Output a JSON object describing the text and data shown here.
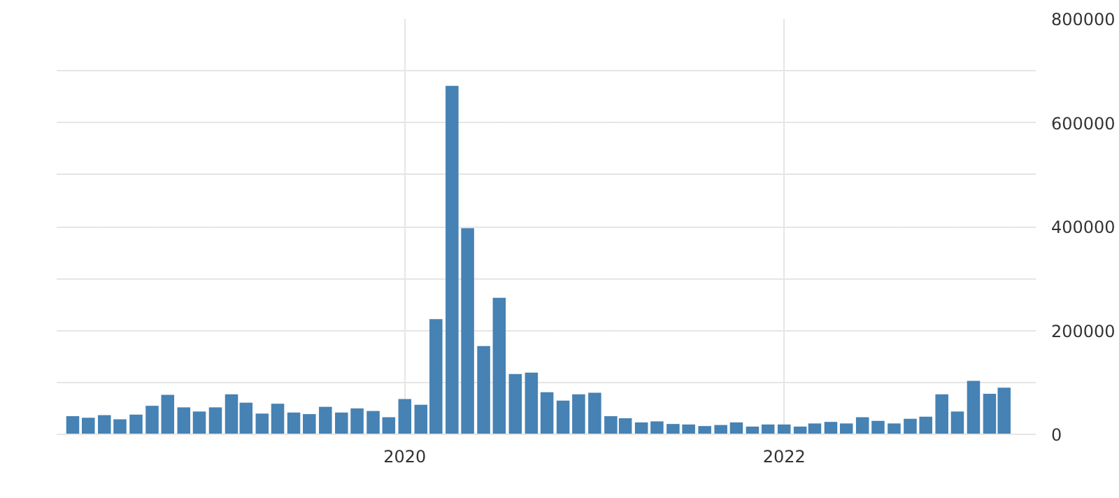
{
  "chart_data": {
    "type": "bar",
    "x": [
      "2018-04",
      "2018-05",
      "2018-06",
      "2018-07",
      "2018-08",
      "2018-09",
      "2018-10",
      "2018-11",
      "2018-12",
      "2019-01",
      "2019-02",
      "2019-03",
      "2019-04",
      "2019-05",
      "2019-06",
      "2019-07",
      "2019-08",
      "2019-09",
      "2019-10",
      "2019-11",
      "2019-12",
      "2020-01",
      "2020-02",
      "2020-03",
      "2020-04",
      "2020-05",
      "2020-06",
      "2020-07",
      "2020-08",
      "2020-09",
      "2020-10",
      "2020-11",
      "2020-12",
      "2021-01",
      "2021-02",
      "2021-03",
      "2021-04",
      "2021-05",
      "2021-06",
      "2021-07",
      "2021-08",
      "2021-09",
      "2021-10",
      "2021-11",
      "2021-12",
      "2022-01",
      "2022-02",
      "2022-03",
      "2022-04",
      "2022-05",
      "2022-06",
      "2022-07",
      "2022-08",
      "2022-09",
      "2022-10",
      "2022-11",
      "2022-12",
      "2023-01",
      "2023-02",
      "2023-03"
    ],
    "values": [
      35000,
      32000,
      37000,
      29000,
      38000,
      55000,
      76000,
      52000,
      44000,
      52000,
      77000,
      61000,
      40000,
      59000,
      42000,
      39000,
      53000,
      42000,
      50000,
      45000,
      33000,
      68000,
      57000,
      222000,
      671000,
      397000,
      170000,
      263000,
      116000,
      119000,
      81000,
      65000,
      77000,
      80000,
      35000,
      31000,
      23000,
      25000,
      20000,
      19000,
      16000,
      18000,
      23000,
      15000,
      19000,
      19000,
      15000,
      21000,
      24000,
      21000,
      33000,
      26000,
      21000,
      30000,
      34000,
      77000,
      44000,
      103000,
      78000,
      90000
    ],
    "color": "#4682b4",
    "xlim": [
      "2018-03",
      "2023-05"
    ],
    "xticks": [
      {
        "value": "2020-01",
        "label": "2020"
      },
      {
        "value": "2022-01",
        "label": "2022"
      }
    ],
    "ylim": [
      0,
      800000
    ],
    "yticks": [
      0,
      200000,
      400000,
      600000,
      800000
    ],
    "grid": true
  }
}
